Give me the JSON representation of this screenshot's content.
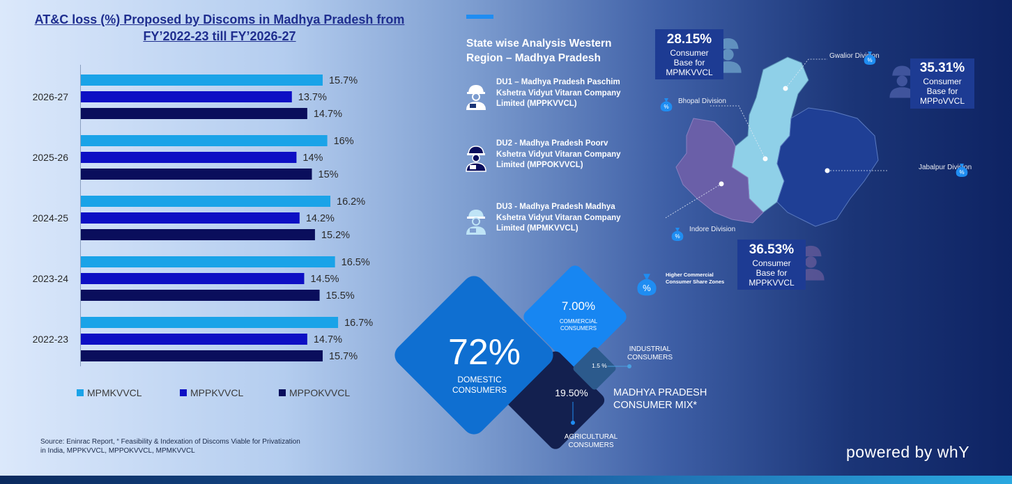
{
  "chart_data": {
    "type": "bar",
    "orientation": "horizontal",
    "title": "AT&C loss (%) Proposed by Discoms in Madhya Pradesh from FY’2022-23 till FY’2026-27",
    "categories": [
      "2026-27",
      "2025-26",
      "2024-25",
      "2023-24",
      "2022-23"
    ],
    "series": [
      {
        "name": "MPMKVVCL",
        "color": "#1aa3e8",
        "values": [
          15.7,
          16,
          16.2,
          16.5,
          16.7
        ],
        "labels": [
          "15.7%",
          "16%",
          "16.2%",
          "16.5%",
          "16.7%"
        ]
      },
      {
        "name": "MPPKVVCL",
        "color": "#0d0fc4",
        "values": [
          13.7,
          14,
          14.2,
          14.5,
          14.7
        ],
        "labels": [
          "13.7%",
          "14%",
          "14.2%",
          "14.5%",
          "14.7%"
        ]
      },
      {
        "name": "MPPOKVVCL",
        "color": "#0a0e5c",
        "values": [
          14.7,
          15,
          15.2,
          15.5,
          15.7
        ],
        "labels": [
          "14.7%",
          "15%",
          "15.2%",
          "15.5%",
          "15.7%"
        ]
      }
    ],
    "xlim": [
      0,
      20
    ],
    "grid": false,
    "legend_position": "bottom"
  },
  "source_note": "Source: Eninrac Report, “ Feasibility & Indexation of Discoms Viable for Privatization in India, MPPKVVCL, MPPOKVVCL, MPMKVVCL",
  "region": {
    "title": "State wise Analysis Western Region – Madhya Pradesh",
    "discoms": [
      {
        "text": "DU1 – Madhya Pradesh Paschim Kshetra Vidyut Vitaran Company Limited (MPPKVVCL)",
        "icon": "worker-icon",
        "color": "#ffffff"
      },
      {
        "text": "DU2 - Madhya Pradesh Poorv Kshetra Vidyut Vitaran Company Limited (MPPOKVVCL)",
        "icon": "worker-icon",
        "color": "#0a0e5c"
      },
      {
        "text": "DU3 - Madhya Pradesh Madhya Kshetra Vidyut Vitaran Company Limited (MPMKVVCL)",
        "icon": "worker-icon",
        "color": "#bfe4f6"
      }
    ]
  },
  "consumer_base": {
    "mpmkvvcl": {
      "pct": "28.15%",
      "text": "Consumer Base for MPMKVVCL"
    },
    "mppovvcl": {
      "pct": "35.31%",
      "text": "Consumer Base for MPPoVVCL"
    },
    "mppkvvcl": {
      "pct": "36.53%",
      "text": "Consumer Base for MPPKVVCL"
    }
  },
  "divisions": {
    "gwalior": "Gwalior Division",
    "bhopal": "Bhopal Division",
    "jabalpur": "Jabalpur Division",
    "indore": "Indore Division"
  },
  "map_legend": "Higher Commercial Consumer Share Zones",
  "consumer_mix": {
    "title": "MADHYA PRADESH CONSUMER MIX*",
    "domestic": {
      "pct": "72%",
      "label": "DOMESTIC CONSUMERS",
      "value": 72,
      "color": "#0f6fd1"
    },
    "commercial": {
      "pct": "7.00%",
      "label": "COMMERCIAL CONSUMERS",
      "value": 7,
      "color": "#1786f2"
    },
    "industrial": {
      "pct": "1.5 %",
      "label": "INDUSTRIAL CONSUMERS",
      "value": 1.5,
      "color": "#2c5a8c"
    },
    "agricultural": {
      "pct": "19.50%",
      "label": "AGRICULTURAL CONSUMERS",
      "value": 19.5,
      "color": "#13204f"
    }
  },
  "branding": "powered by whY",
  "colors": {
    "accent": "#1f8df2",
    "title": "#1f2e8f",
    "box": "#1d3b93"
  }
}
